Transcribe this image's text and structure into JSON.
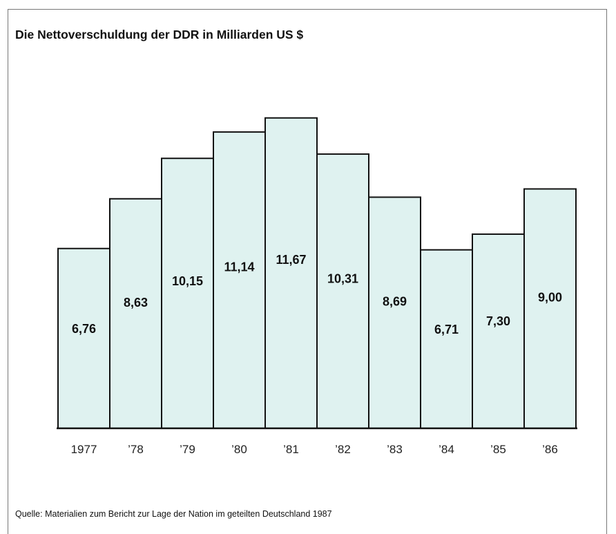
{
  "chart_data": {
    "type": "bar",
    "title": "Die Nettoverschuldung der DDR in Milliarden US $",
    "categories": [
      "1977",
      "’78",
      "’79",
      "’80",
      "’81",
      "’82",
      "’83",
      "’84",
      "’85",
      "’86"
    ],
    "values": [
      6.76,
      8.63,
      10.15,
      11.14,
      11.67,
      10.31,
      8.69,
      6.71,
      7.3,
      9.0
    ],
    "value_labels": [
      "6,76",
      "8,63",
      "10,15",
      "11,14",
      "11,67",
      "10,31",
      "8,69",
      "6,71",
      "7,30",
      "9,00"
    ],
    "xlabel": "",
    "ylabel": "",
    "grid": false,
    "legend": "none",
    "bar_color": "#dff2f0",
    "bar_edge_color": "#111111"
  },
  "source": "Quelle: Materialien zum Bericht zur Lage der Nation im geteilten Deutschland 1987"
}
